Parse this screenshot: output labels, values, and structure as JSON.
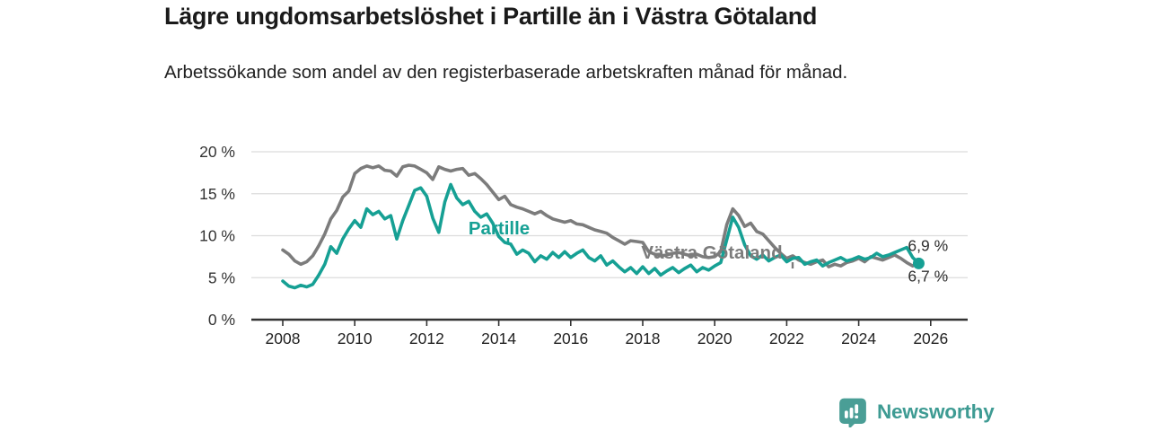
{
  "chart_data": {
    "type": "line",
    "title": "Lägre ungdomsarbetslöshet i Partille än i Västra Götaland",
    "subtitle": "Arbetssökande som andel av den registerbaserade arbetskraften månad för månad.",
    "x_start_year": 2008,
    "points_per_year": 6,
    "ylim": [
      0,
      20
    ],
    "xlim": [
      2008,
      2026
    ],
    "grid": true,
    "legend_position": "inline-labels",
    "y_tick_values": [
      0,
      5,
      10,
      15,
      20
    ],
    "y_tick_labels": [
      "0 %",
      "5 %",
      "10 %",
      "15 %",
      "20 %"
    ],
    "x_tick_values": [
      2008,
      2010,
      2012,
      2014,
      2016,
      2018,
      2020,
      2022,
      2024,
      2026
    ],
    "x_tick_labels": [
      "2008",
      "2010",
      "2012",
      "2014",
      "2016",
      "2018",
      "2020",
      "2022",
      "2024",
      "2026"
    ],
    "axis_color": "#333333",
    "grid_color": "#dcdcdc",
    "end_label_color": "#303030",
    "series": [
      {
        "name": "Västra Götaland",
        "color": "#7c7c7c",
        "end_label": "6,9 %",
        "end_value": 6.9,
        "end_dot": false,
        "values": [
          8.3,
          7.8,
          7.0,
          6.6,
          6.9,
          7.6,
          8.8,
          10.2,
          12.0,
          13.0,
          14.6,
          15.3,
          17.4,
          18.0,
          18.3,
          18.1,
          18.3,
          17.8,
          17.7,
          17.1,
          18.2,
          18.4,
          18.3,
          17.9,
          17.5,
          16.7,
          18.2,
          17.9,
          17.7,
          17.9,
          18.0,
          17.2,
          17.4,
          16.8,
          16.1,
          15.2,
          14.3,
          14.7,
          13.7,
          13.4,
          13.2,
          12.9,
          12.6,
          12.9,
          12.4,
          12.0,
          11.8,
          11.6,
          11.8,
          11.4,
          11.3,
          11.0,
          10.7,
          10.5,
          10.3,
          9.8,
          9.4,
          9.0,
          9.4,
          9.3,
          9.2,
          8.1,
          7.8,
          7.6,
          7.7,
          7.9,
          8.0,
          7.8,
          7.6,
          7.8,
          7.5,
          7.4,
          7.5,
          8.1,
          11.3,
          13.2,
          12.4,
          11.1,
          11.5,
          10.5,
          10.2,
          9.4,
          8.6,
          7.9,
          7.3,
          7.6,
          7.1,
          6.8,
          6.6,
          6.9,
          7.1,
          6.3,
          6.6,
          6.4,
          6.8,
          7.0,
          7.3,
          6.9,
          7.5,
          7.3,
          7.1,
          7.4,
          7.7,
          7.3,
          6.8,
          6.4,
          6.9
        ]
      },
      {
        "name": "Partille",
        "color": "#16a094",
        "end_label": "6,7 %",
        "end_value": 6.7,
        "end_dot": true,
        "values": [
          4.6,
          4.0,
          3.8,
          4.1,
          3.9,
          4.2,
          5.3,
          6.6,
          8.7,
          7.9,
          9.6,
          10.8,
          11.8,
          11.0,
          13.2,
          12.5,
          12.9,
          12.0,
          12.4,
          9.6,
          11.8,
          13.6,
          15.4,
          15.7,
          14.7,
          12.1,
          10.4,
          14.0,
          16.1,
          14.5,
          13.7,
          14.1,
          12.9,
          12.2,
          12.6,
          11.5,
          9.9,
          9.2,
          9.0,
          7.8,
          8.3,
          7.9,
          6.9,
          7.6,
          7.2,
          8.0,
          7.4,
          8.1,
          7.4,
          7.9,
          8.3,
          7.4,
          7.0,
          7.6,
          6.5,
          7.0,
          6.3,
          5.7,
          6.2,
          5.5,
          6.3,
          5.5,
          6.1,
          5.3,
          5.8,
          6.2,
          5.6,
          6.1,
          6.5,
          5.7,
          6.2,
          5.9,
          6.4,
          6.8,
          9.5,
          12.2,
          11.0,
          8.9,
          7.6,
          7.2,
          7.7,
          7.0,
          7.4,
          7.7,
          6.9,
          7.3,
          7.4,
          6.6,
          6.9,
          7.1,
          6.4,
          6.8,
          7.1,
          7.4,
          7.0,
          7.2,
          7.5,
          7.2,
          7.4,
          7.9,
          7.5,
          7.7,
          8.0,
          8.3,
          8.6,
          7.4,
          6.7
        ]
      }
    ]
  },
  "footer": {
    "brand": "Newsworthy",
    "brand_color": "#4a9e96"
  }
}
